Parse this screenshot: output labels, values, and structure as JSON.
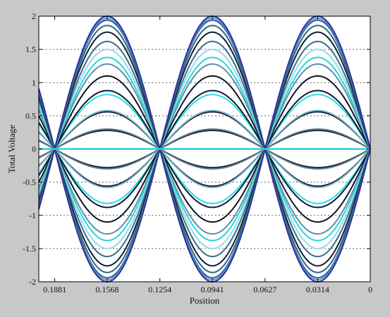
{
  "chart_data": {
    "type": "line",
    "title": "",
    "xlabel": "Position",
    "ylabel": "Total Voltage",
    "x_reversed": true,
    "xlim": [
      0.1976,
      0
    ],
    "ylim": [
      -2,
      2
    ],
    "xticks": [
      0.1881,
      0.1568,
      0.1254,
      0.0941,
      0.0627,
      0.0314,
      0
    ],
    "xtick_labels": [
      "0.1881",
      "0.1568",
      "0.1254",
      "0.0941",
      "0.0627",
      "0.0314",
      "0"
    ],
    "yticks": [
      -2,
      -1.5,
      -1,
      -0.5,
      0,
      0.5,
      1,
      1.5,
      2
    ],
    "ytick_labels": [
      "-2",
      "-1.5",
      "-1",
      "-0.5",
      "0",
      "0.5",
      "1",
      "1.5",
      "2"
    ],
    "grid": "horizontal-dotted",
    "function": "amplitude * sin(2*pi*x / 0.12545)",
    "wavelength": 0.12545,
    "series": [
      {
        "amplitude": 0.0,
        "color": "#2ad0d8"
      },
      {
        "amplitude": 0.28,
        "color": "#1a1a2e"
      },
      {
        "amplitude": -0.28,
        "color": "#1a1a2e"
      },
      {
        "amplitude": 0.56,
        "color": "#101830"
      },
      {
        "amplitude": -0.56,
        "color": "#101830"
      },
      {
        "amplitude": 0.3,
        "color": "#5a7e92"
      },
      {
        "amplitude": -0.3,
        "color": "#5a7e92"
      },
      {
        "amplitude": 0.58,
        "color": "#7ab8c8"
      },
      {
        "amplitude": -0.58,
        "color": "#7ab8c8"
      },
      {
        "amplitude": 0.82,
        "color": "#22e0e0"
      },
      {
        "amplitude": -0.82,
        "color": "#22e0e0"
      },
      {
        "amplitude": 0.88,
        "color": "#101a38"
      },
      {
        "amplitude": -0.88,
        "color": "#101a38"
      },
      {
        "amplitude": 1.1,
        "color": "#0e1428"
      },
      {
        "amplitude": -1.1,
        "color": "#0e1428"
      },
      {
        "amplitude": 1.28,
        "color": "#5f8fa8"
      },
      {
        "amplitude": -1.28,
        "color": "#5f8fa8"
      },
      {
        "amplitude": 1.38,
        "color": "#20d8dc"
      },
      {
        "amplitude": -1.38,
        "color": "#20d8dc"
      },
      {
        "amplitude": 1.5,
        "color": "#9ad8e4"
      },
      {
        "amplitude": -1.5,
        "color": "#9ad8e4"
      },
      {
        "amplitude": 1.62,
        "color": "#3a6e8c"
      },
      {
        "amplitude": -1.62,
        "color": "#3a6e8c"
      },
      {
        "amplitude": 1.76,
        "color": "#0e1e3a"
      },
      {
        "amplitude": -1.76,
        "color": "#0e1e3a"
      },
      {
        "amplitude": 1.86,
        "color": "#2a6a78"
      },
      {
        "amplitude": -1.86,
        "color": "#2a6a78"
      },
      {
        "amplitude": 1.94,
        "color": "#4a48a8"
      },
      {
        "amplitude": -1.94,
        "color": "#4a48a8"
      },
      {
        "amplitude": 1.97,
        "color": "#3aa8c8"
      },
      {
        "amplitude": -1.97,
        "color": "#3aa8c8"
      },
      {
        "amplitude": 2.0,
        "color": "#2e2e9a"
      },
      {
        "amplitude": -2.0,
        "color": "#2e2e9a"
      }
    ]
  }
}
